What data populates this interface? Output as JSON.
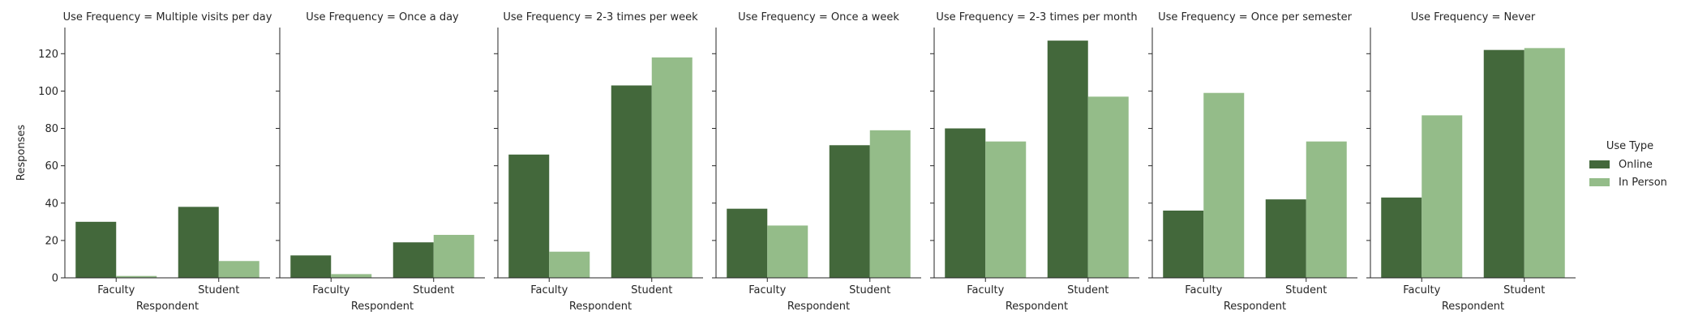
{
  "chart_data": {
    "type": "bar",
    "facet_prefix": "Use Frequency = ",
    "facets": [
      {
        "title": "Multiple visits per day",
        "categories": [
          "Faculty",
          "Student"
        ],
        "series": [
          {
            "name": "Online",
            "values": [
              30,
              38
            ]
          },
          {
            "name": "In Person",
            "values": [
              1,
              9
            ]
          }
        ]
      },
      {
        "title": "Once a day",
        "categories": [
          "Faculty",
          "Student"
        ],
        "series": [
          {
            "name": "Online",
            "values": [
              12,
              19
            ]
          },
          {
            "name": "In Person",
            "values": [
              2,
              23
            ]
          }
        ]
      },
      {
        "title": "2-3 times per week",
        "categories": [
          "Faculty",
          "Student"
        ],
        "series": [
          {
            "name": "Online",
            "values": [
              66,
              103
            ]
          },
          {
            "name": "In Person",
            "values": [
              14,
              118
            ]
          }
        ]
      },
      {
        "title": "Once a week",
        "categories": [
          "Faculty",
          "Student"
        ],
        "series": [
          {
            "name": "Online",
            "values": [
              37,
              71
            ]
          },
          {
            "name": "In Person",
            "values": [
              28,
              79
            ]
          }
        ]
      },
      {
        "title": "2-3 times per month",
        "categories": [
          "Faculty",
          "Student"
        ],
        "series": [
          {
            "name": "Online",
            "values": [
              80,
              127
            ]
          },
          {
            "name": "In Person",
            "values": [
              73,
              97
            ]
          }
        ]
      },
      {
        "title": "Once per semester",
        "categories": [
          "Faculty",
          "Student"
        ],
        "series": [
          {
            "name": "Online",
            "values": [
              36,
              42
            ]
          },
          {
            "name": "In Person",
            "values": [
              99,
              73
            ]
          }
        ]
      },
      {
        "title": "Never",
        "categories": [
          "Faculty",
          "Student"
        ],
        "series": [
          {
            "name": "Online",
            "values": [
              43,
              122
            ]
          },
          {
            "name": "In Person",
            "values": [
              87,
              123
            ]
          }
        ]
      }
    ],
    "xlabel": "Respondent",
    "ylabel": "Responses",
    "ylim": [
      0,
      134
    ],
    "yticks": [
      0,
      20,
      40,
      60,
      80,
      100,
      120
    ],
    "grid": false,
    "legend": {
      "title": "Use Type",
      "placement": "right",
      "entries": [
        "Online",
        "In Person"
      ]
    },
    "colors": {
      "Online": "#43683b",
      "In Person": "#94bc89"
    }
  }
}
